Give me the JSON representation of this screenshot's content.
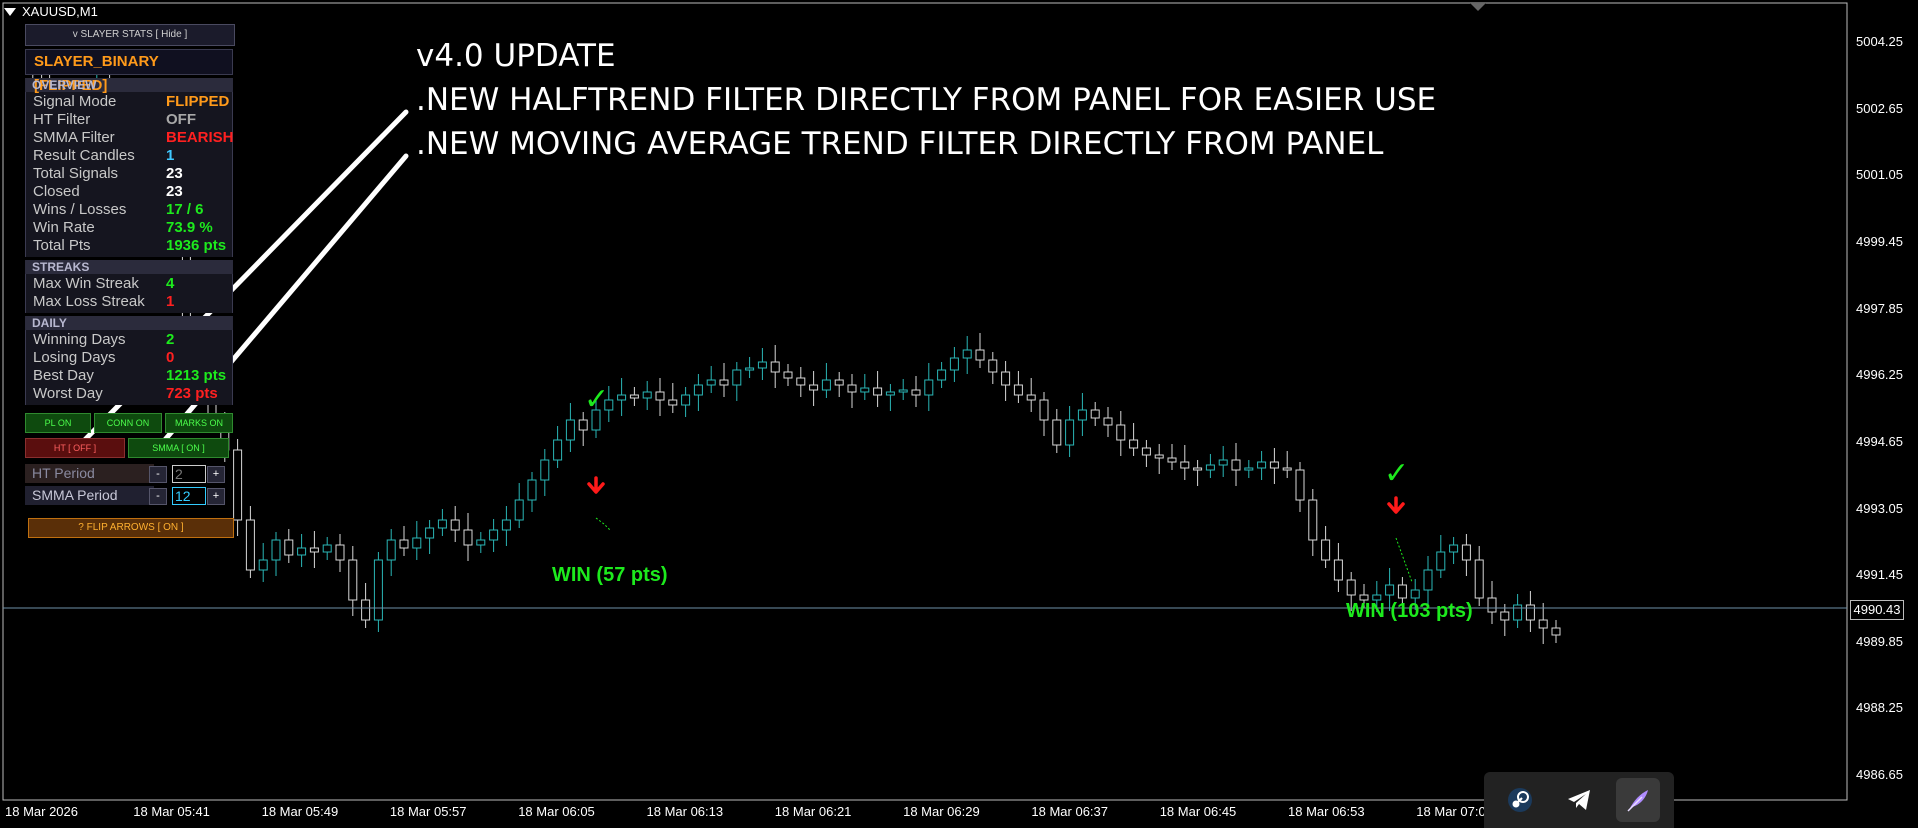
{
  "chart": {
    "symbol": "XAUUSD,M1",
    "current_price": "4990.43",
    "price_ticks": [
      "5004.25",
      "5002.65",
      "5001.05",
      "4999.45",
      "4997.85",
      "4996.25",
      "4994.65",
      "4993.05",
      "4991.45",
      "4989.85",
      "4988.25",
      "4986.65"
    ],
    "time_ticks": [
      "18 Mar 2026",
      "18 Mar 05:41",
      "18 Mar 05:49",
      "18 Mar 05:57",
      "18 Mar 06:05",
      "18 Mar 06:13",
      "18 Mar 06:21",
      "18 Mar 06:29",
      "18 Mar 06:37",
      "18 Mar 06:45",
      "18 Mar 06:53",
      "18 Mar 07:0"
    ],
    "colors": {
      "bull": "#2ab7b7",
      "bear": "#d8d8d8",
      "grid": "#2a2a2a",
      "price_line": "#6e8fa8",
      "arrow_down": "#ff1a1a",
      "win_text": "#1dea1d"
    }
  },
  "panel": {
    "stats_button": "v  SLAYER STATS  [ Hide ]",
    "title": "SLAYER_BINARY [FLIPPED]",
    "overview_header": "OVERVIEW",
    "overview": [
      {
        "label": "Signal Mode",
        "value": "FLIPPED",
        "color": "#ff9a1a"
      },
      {
        "label": "HT Filter",
        "value": "OFF",
        "color": "#a8a8a8"
      },
      {
        "label": "SMMA Filter",
        "value": "BEARISH",
        "color": "#ff2020"
      },
      {
        "label": "Result Candles",
        "value": "1",
        "color": "#3fc8ff"
      },
      {
        "label": "Total Signals",
        "value": "23",
        "color": "#ffffff"
      },
      {
        "label": "Closed",
        "value": "23",
        "color": "#ffffff"
      },
      {
        "label": "Wins / Losses",
        "value": "17 / 6",
        "color": "#1dea1d"
      },
      {
        "label": "Win Rate",
        "value": "73.9 %",
        "color": "#1dea1d"
      },
      {
        "label": "Total Pts",
        "value": "1936 pts",
        "color": "#1dea1d"
      }
    ],
    "streaks_header": "STREAKS",
    "streaks": [
      {
        "label": "Max Win Streak",
        "value": "4",
        "color": "#1dea1d"
      },
      {
        "label": "Max Loss Streak",
        "value": "1",
        "color": "#ff2020"
      }
    ],
    "daily_header": "DAILY",
    "daily": [
      {
        "label": "Winning Days",
        "value": "2",
        "color": "#1dea1d"
      },
      {
        "label": "Losing Days",
        "value": "0",
        "color": "#ff2020"
      },
      {
        "label": "Best Day",
        "value": "1213 pts",
        "color": "#1dea1d"
      },
      {
        "label": "Worst Day",
        "value": "723 pts",
        "color": "#ff2020"
      }
    ],
    "toggles": {
      "pl": "PL ON",
      "conn": "CONN ON",
      "marks": "MARKS ON",
      "ht": "HT  [ OFF ]",
      "smma": "SMMA [ ON ]"
    },
    "ht_period": {
      "label": "HT Period",
      "value": "2",
      "minus": "-",
      "plus": "+"
    },
    "smma_period": {
      "label": "SMMA Period",
      "value": "12",
      "minus": "-",
      "plus": "+"
    },
    "flip_arrows": "?  FLIP ARROWS  [ ON ]"
  },
  "annotation": {
    "line1": "v4.0 UPDATE",
    "line2": ".NEW HALFTREND FILTER DIRECTLY FROM PANEL FOR EASIER USE",
    "line3": ".NEW MOVING AVERAGE TREND FILTER DIRECTLY FROM PANEL"
  },
  "signals": [
    {
      "label": "WIN  (57 pts)",
      "check": "✓"
    },
    {
      "label": "WIN  (103 pts)",
      "check": "✓"
    }
  ],
  "dock": [
    {
      "icon": "steam-icon"
    },
    {
      "icon": "telegram-icon"
    },
    {
      "icon": "feather-icon"
    }
  ]
}
